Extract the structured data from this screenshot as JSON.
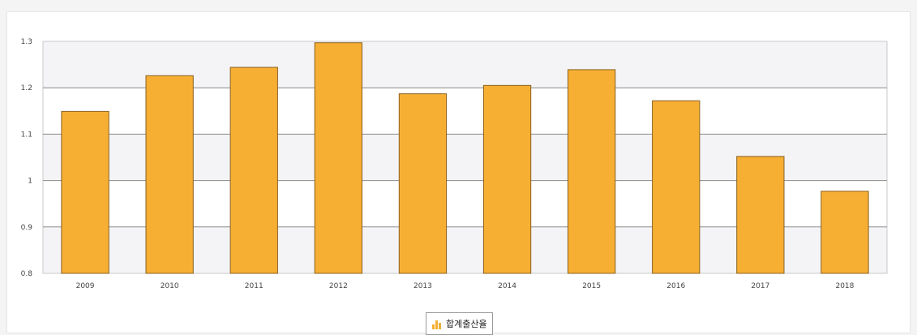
{
  "chart_data": {
    "type": "bar",
    "categories": [
      "2009",
      "2010",
      "2011",
      "2012",
      "2013",
      "2014",
      "2015",
      "2016",
      "2017",
      "2018"
    ],
    "values": [
      1.149,
      1.226,
      1.244,
      1.297,
      1.187,
      1.205,
      1.239,
      1.172,
      1.052,
      0.977
    ],
    "ylim": [
      0.8,
      1.3
    ],
    "yticks": [
      0.8,
      0.9,
      1,
      1.1,
      1.2,
      1.3
    ],
    "ytick_labels": [
      "0.8",
      "0.9",
      "1",
      "1.1",
      "1.2",
      "1.3"
    ],
    "grid": true,
    "legend_position": "bottom-center",
    "series": [
      {
        "name": "합계출산율",
        "values": [
          1.149,
          1.226,
          1.244,
          1.297,
          1.187,
          1.205,
          1.239,
          1.172,
          1.052,
          0.977
        ]
      }
    ],
    "colors": {
      "bar": "#F7AF33",
      "bar_stroke": "#8a6020",
      "band": "#f4f4f6",
      "grid": "#8a8a8a"
    }
  },
  "legend": {
    "label": "합계출산율",
    "icon": "bar-chart-icon"
  }
}
